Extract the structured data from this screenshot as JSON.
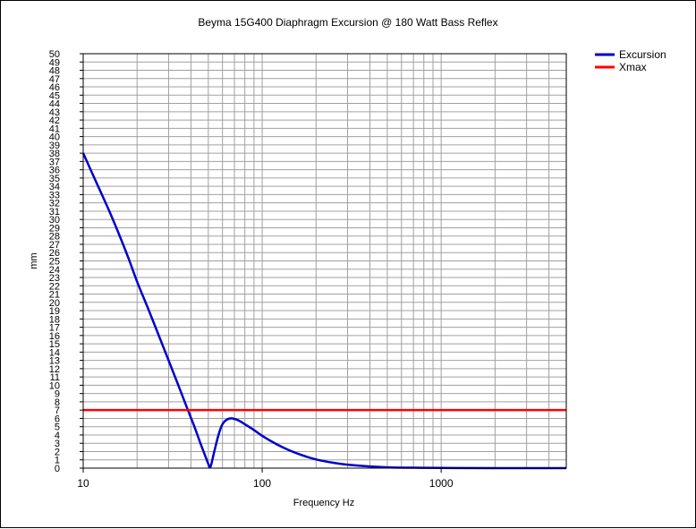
{
  "chart_data": {
    "type": "line",
    "title": "Beyma 15G400 Diaphragm Excursion @ 180 Watt Bass Reflex",
    "xlabel": "Frequency Hz",
    "ylabel": "mm",
    "xscale": "log",
    "xlim": [
      10,
      5000
    ],
    "ylim": [
      0,
      50
    ],
    "x_ticks": [
      "10",
      "100",
      "1000"
    ],
    "y_ticks": [
      0,
      1,
      2,
      3,
      4,
      5,
      6,
      7,
      8,
      9,
      10,
      11,
      12,
      13,
      14,
      15,
      16,
      17,
      18,
      19,
      20,
      21,
      22,
      23,
      24,
      25,
      26,
      27,
      28,
      29,
      30,
      31,
      32,
      33,
      34,
      35,
      36,
      37,
      38,
      39,
      40,
      41,
      42,
      43,
      44,
      45,
      46,
      47,
      48,
      49,
      50
    ],
    "grid": true,
    "legend_position": "top-right",
    "series": [
      {
        "name": "Excursion",
        "color": "#0000cc",
        "x": [
          10,
          12,
          14,
          16,
          18,
          20,
          23,
          26,
          30,
          34,
          38,
          42,
          45,
          48,
          50,
          51,
          52,
          54,
          57,
          60,
          64,
          68,
          72,
          76,
          80,
          90,
          100,
          120,
          140,
          170,
          200,
          250,
          300,
          400,
          500,
          700,
          1000,
          2000,
          5000
        ],
        "y": [
          38,
          34.2,
          31.0,
          28.0,
          25.2,
          22.5,
          19.3,
          16.4,
          13.0,
          10.0,
          7.3,
          4.9,
          3.1,
          1.5,
          0.5,
          0.1,
          0.5,
          2.0,
          4.0,
          5.3,
          5.9,
          6.0,
          5.85,
          5.6,
          5.3,
          4.6,
          3.9,
          2.9,
          2.2,
          1.5,
          1.05,
          0.65,
          0.42,
          0.2,
          0.1,
          0.05,
          0.02,
          0.005,
          0.0
        ]
      },
      {
        "name": "Xmax",
        "color": "#ff0000",
        "x": [
          10,
          5000
        ],
        "y": [
          7,
          7
        ]
      }
    ]
  }
}
